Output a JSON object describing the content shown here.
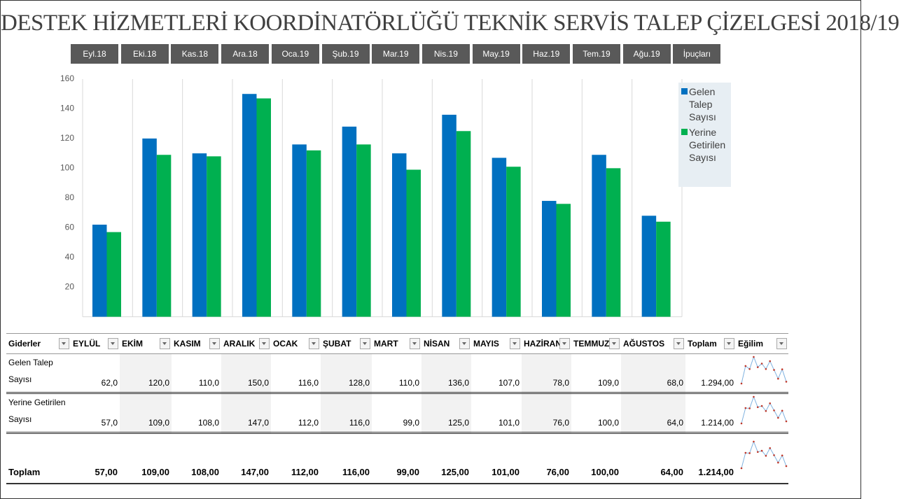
{
  "title": "DESTEK HİZMETLERİ KOORDİNATÖRLÜĞÜ TEKNİK SERVİS TALEP ÇİZELGESİ 2018/19",
  "tabs": [
    "Eyl.18",
    "Eki.18",
    "Kas.18",
    "Ara.18",
    "Oca.19",
    "Şub.19",
    "Mar.19",
    "Nis.19",
    "May.19",
    "Haz.19",
    "Tem.19",
    "Ağu.19",
    "İpuçları"
  ],
  "chart_data": {
    "type": "bar",
    "series": [
      {
        "name": "Gelen Talep Sayısı",
        "color": "#0070c0",
        "values": [
          62,
          120,
          110,
          150,
          116,
          128,
          110,
          136,
          107,
          78,
          109,
          68
        ]
      },
      {
        "name": "Yerine Getirilen Sayısı",
        "color": "#00b050",
        "values": [
          57,
          109,
          108,
          147,
          112,
          116,
          99,
          125,
          101,
          76,
          100,
          64
        ]
      }
    ],
    "ylim": [
      0,
      160
    ],
    "yticks": [
      20,
      40,
      60,
      80,
      100,
      120,
      140,
      160
    ],
    "grid": true,
    "legend": "right"
  },
  "table": {
    "header": [
      "Giderler",
      "EYLÜL",
      "EKİM",
      "KASIM",
      "ARALIK",
      "OCAK",
      "ŞUBAT",
      "MART",
      "NİSAN",
      "MAYIS",
      "HAZİRAN",
      "TEMMUZ",
      "AĞUSTOS",
      "Toplam",
      "Eğilim"
    ],
    "rows": [
      [
        "Gelen Talep Sayısı",
        "62,0",
        "120,0",
        "110,0",
        "150,0",
        "116,0",
        "128,0",
        "110,0",
        "136,0",
        "107,0",
        "78,0",
        "109,0",
        "68,0",
        "1.294,00"
      ],
      [
        "Yerine Getirilen Sayısı",
        "57,0",
        "109,0",
        "108,0",
        "147,0",
        "112,0",
        "116,0",
        "99,0",
        "125,0",
        "101,0",
        "76,0",
        "100,0",
        "64,0",
        "1.214,00"
      ],
      [
        "Toplam",
        "57,00",
        "109,00",
        "108,00",
        "147,00",
        "112,00",
        "116,00",
        "99,00",
        "125,00",
        "101,00",
        "76,00",
        "100,00",
        "64,00",
        "1.214,00"
      ]
    ]
  }
}
